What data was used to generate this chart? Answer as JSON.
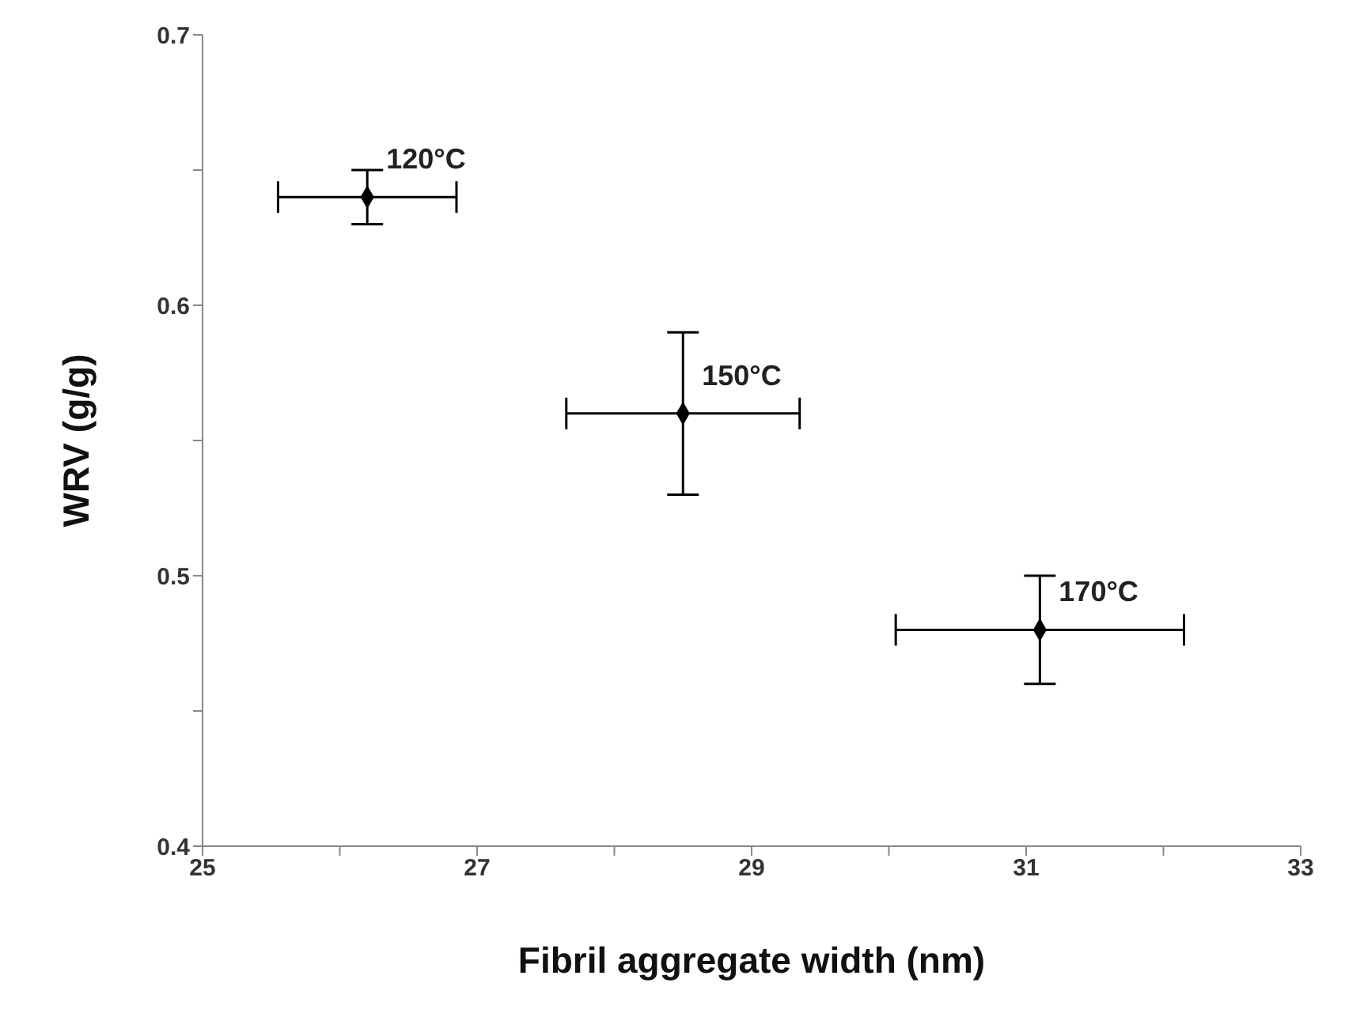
{
  "chart_data": {
    "type": "scatter",
    "xlabel": "Fibril aggregate width (nm)",
    "ylabel": "WRV (g/g)",
    "x": [
      26.2,
      28.5,
      31.1
    ],
    "values": [
      0.64,
      0.56,
      0.48
    ],
    "color": "#000000",
    "errors": [
      0.01,
      0.03,
      0.02
    ],
    "xerrors": [
      0.65,
      0.85,
      1.05
    ],
    "marker": "diamond",
    "xlim": [
      25,
      33
    ],
    "xticks": [
      25,
      {
        "value": 26,
        "label": null
      },
      27,
      {
        "value": 28,
        "label": null
      },
      29,
      {
        "value": 30,
        "label": null
      },
      31,
      {
        "value": 32,
        "label": null
      },
      33
    ],
    "ylim": [
      0.4,
      0.7
    ],
    "yticks": [
      0.4,
      {
        "value": 0.45,
        "label": null
      },
      0.5,
      {
        "value": 0.55,
        "label": null
      },
      0.6,
      {
        "value": 0.65,
        "label": null
      },
      0.7
    ],
    "grid": false,
    "legend": false,
    "annotations": [
      {
        "text": "120°C",
        "x": 26.2,
        "y": 0.64
      },
      {
        "text": "150°C",
        "x": 28.5,
        "y": 0.56
      },
      {
        "text": "170°C",
        "x": 31.1,
        "y": 0.48
      }
    ]
  }
}
